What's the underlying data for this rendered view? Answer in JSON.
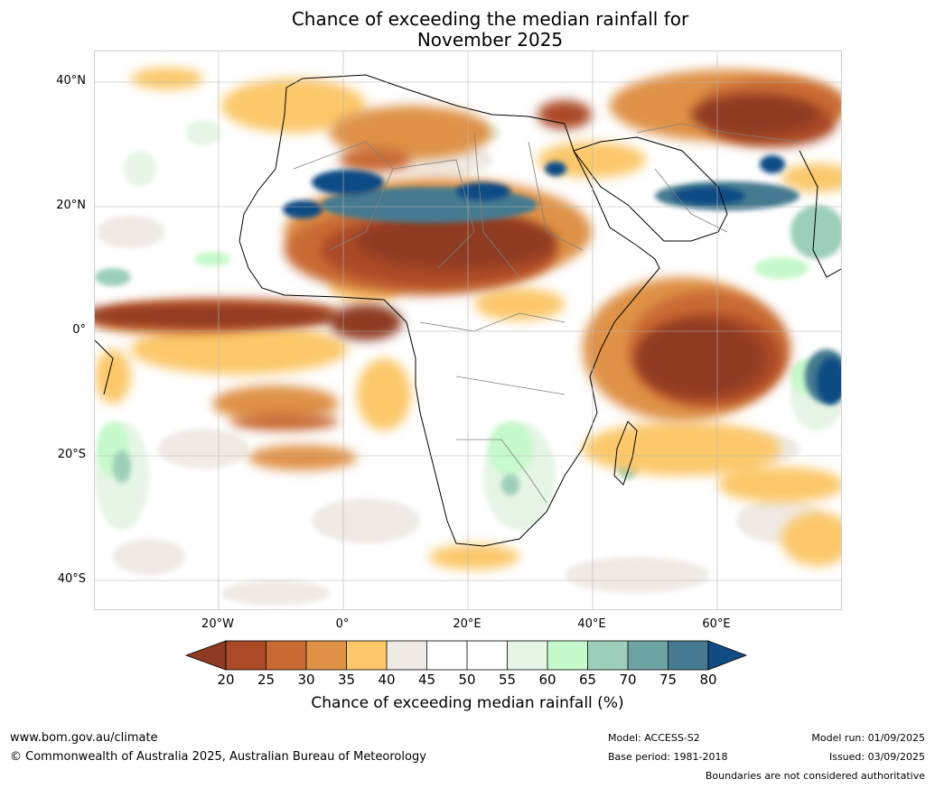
{
  "map": {
    "title_line1": "Chance of exceeding the median rainfall for",
    "title_line2": "November 2025",
    "lat_labels": [
      "40°N",
      "20°N",
      "0°",
      "20°S",
      "40°S"
    ],
    "lon_labels": [
      "20°W",
      "0°",
      "20°E",
      "40°E",
      "60°E"
    ],
    "colors": {
      "c20": "#8f3a22",
      "c25": "#ab4a26",
      "c30": "#c96a35",
      "c35": "#df9246",
      "c40": "#fcc86a",
      "c45": "#efeae5",
      "c50": "#ffffff",
      "c55": "#ffffff",
      "c60": "#e6f5e6",
      "c65": "#c6f9cb",
      "c70": "#9ccfb9",
      "c75": "#6da3a3",
      "c80": "#457a90",
      "c85": "#114c85",
      "land_boundary": "#000000",
      "country_boundary": "#808080"
    }
  },
  "colorbar": {
    "ticks": [
      "20",
      "25",
      "30",
      "35",
      "40",
      "45",
      "50",
      "55",
      "60",
      "65",
      "70",
      "75",
      "80"
    ],
    "label": "Chance of exceeding median rainfall (%)"
  },
  "footer": {
    "website": "www.bom.gov.au/climate",
    "copyright": "© Commonwealth of Australia 2025, Australian Bureau of Meteorology",
    "model": "Model: ACCESS-S2",
    "base_period": "Base period: 1981-2018",
    "model_run": "Model run: 01/09/2025",
    "issued": "Issued: 03/09/2025",
    "disclaimer": "Boundaries are not considered authoritative"
  }
}
